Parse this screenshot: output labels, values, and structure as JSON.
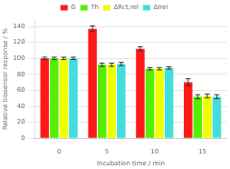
{
  "chart_data": {
    "type": "bar",
    "categories": [
      "0",
      "5",
      "10",
      "15"
    ],
    "series": [
      {
        "name": "G",
        "color": "#ff1a1a",
        "values": [
          100,
          137,
          112,
          70
        ],
        "errors": [
          1.5,
          3.5,
          2.5,
          4.5
        ]
      },
      {
        "name": "Th",
        "color": "#55ee00",
        "values": [
          100,
          92,
          87,
          52
        ],
        "errors": [
          1.5,
          2.0,
          1.5,
          2.5
        ]
      },
      {
        "name": "ΔRct,rel",
        "color": "#eeff00",
        "values": [
          100,
          92,
          87,
          53
        ],
        "errors": [
          1.5,
          2.0,
          1.5,
          2.5
        ]
      },
      {
        "name": "ΔIrel",
        "color": "#44dddd",
        "values": [
          100,
          93,
          88,
          52
        ],
        "errors": [
          1.5,
          2.0,
          1.5,
          2.5
        ]
      }
    ],
    "xlabel": "Incubation time / min",
    "ylabel": "Relative biosensor response / %",
    "ylim": [
      0,
      148
    ],
    "yticks": [
      0,
      20,
      40,
      60,
      80,
      100,
      120,
      140
    ],
    "grid": true,
    "legend": "top"
  }
}
